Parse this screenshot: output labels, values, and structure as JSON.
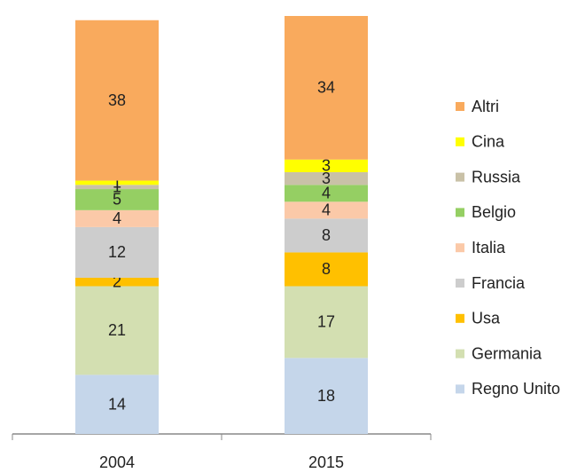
{
  "chart_data": {
    "type": "stacked_bar",
    "categories": [
      "2004",
      "2015"
    ],
    "series": [
      {
        "name": "Regno Unito",
        "color": "#c5d6ea",
        "values": [
          14,
          18
        ]
      },
      {
        "name": "Germania",
        "color": "#d3dfb1",
        "values": [
          21,
          17
        ]
      },
      {
        "name": "Usa",
        "color": "#ffc000",
        "values": [
          2,
          8
        ]
      },
      {
        "name": "Francia",
        "color": "#cdcdcd",
        "values": [
          12,
          8
        ]
      },
      {
        "name": "Italia",
        "color": "#fbc9a8",
        "values": [
          4,
          4
        ]
      },
      {
        "name": "Belgio",
        "color": "#95cf63",
        "values": [
          5,
          4
        ]
      },
      {
        "name": "Russia",
        "color": "#c9c1a7",
        "values": [
          1,
          3
        ]
      },
      {
        "name": "Cina",
        "color": "#ffff00",
        "values": [
          1,
          3
        ]
      },
      {
        "name": "Altri",
        "color": "#f9aa5d",
        "values": [
          38,
          34
        ]
      }
    ],
    "legend": "right"
  }
}
